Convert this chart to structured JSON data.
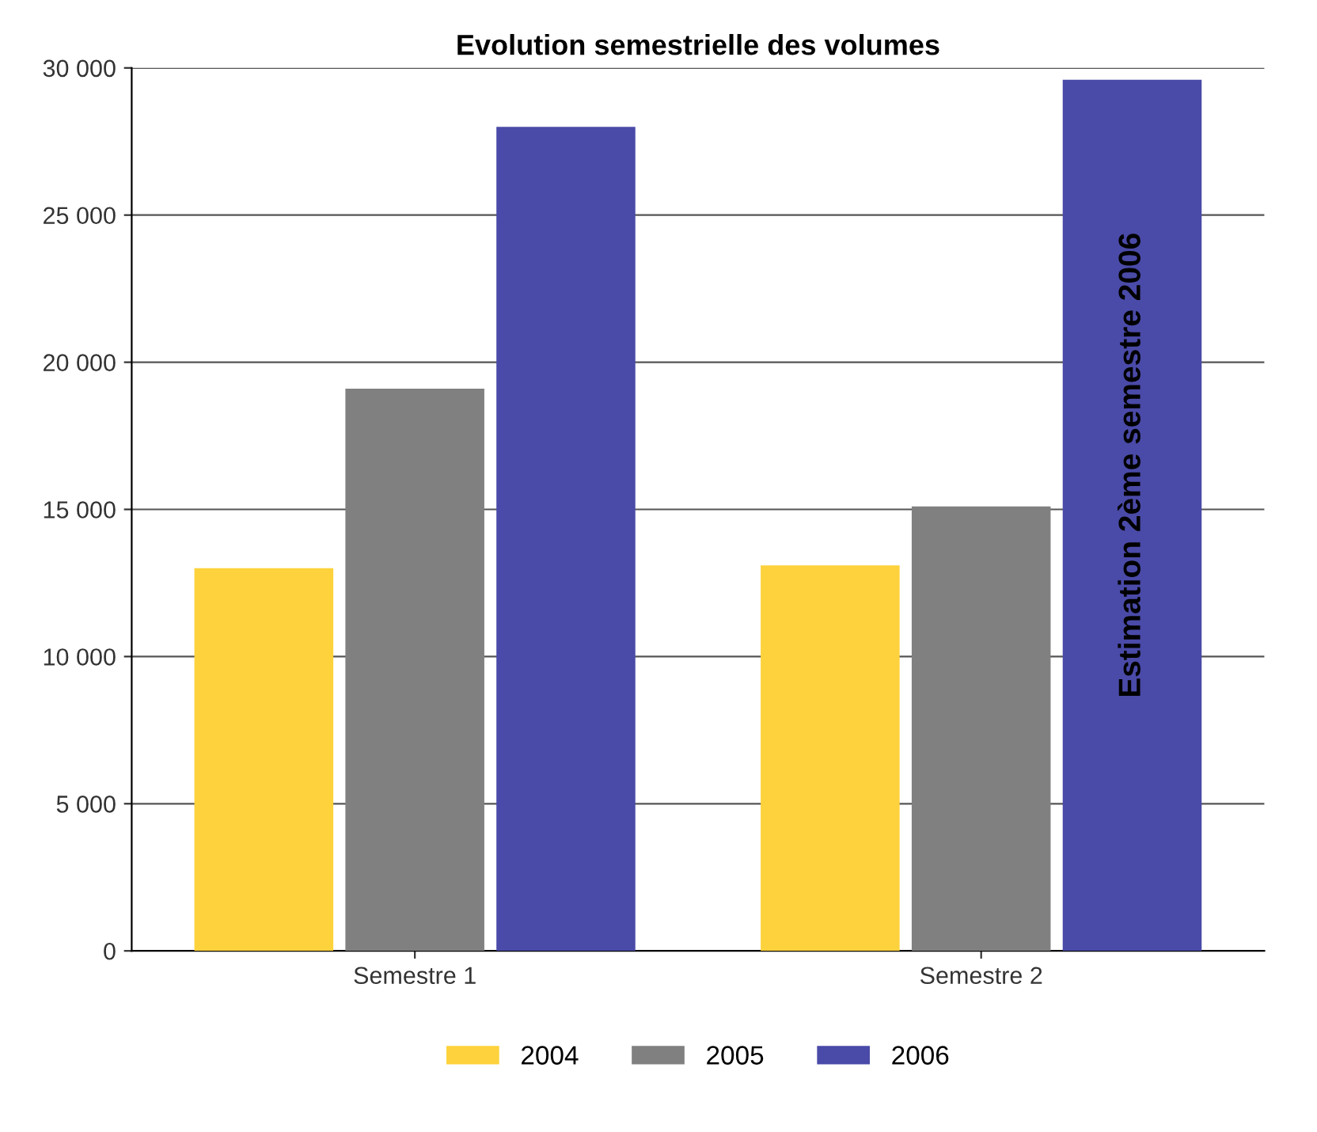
{
  "chart_data": {
    "type": "bar",
    "title": "Evolution semestrielle des volumes",
    "categories": [
      "Semestre 1",
      "Semestre 2"
    ],
    "series": [
      {
        "name": "2004",
        "color": "#fdd23c",
        "values": [
          13000,
          13100
        ]
      },
      {
        "name": "2005",
        "color": "#808080",
        "values": [
          19100,
          15100
        ]
      },
      {
        "name": "2006",
        "color": "#4a4aa8",
        "values": [
          28000,
          29600
        ]
      }
    ],
    "ylim": [
      0,
      30000
    ],
    "yticks": [
      {
        "value": 0,
        "label": "0"
      },
      {
        "value": 5000,
        "label": "5 000"
      },
      {
        "value": 10000,
        "label": "10 000"
      },
      {
        "value": 15000,
        "label": "15 000"
      },
      {
        "value": 20000,
        "label": "20 000"
      },
      {
        "value": 25000,
        "label": "25 000"
      },
      {
        "value": 30000,
        "label": "30 000"
      }
    ],
    "annotations": [
      "Estimation 2ème semestre 2006"
    ],
    "grid": "y",
    "legend": "bottom"
  }
}
